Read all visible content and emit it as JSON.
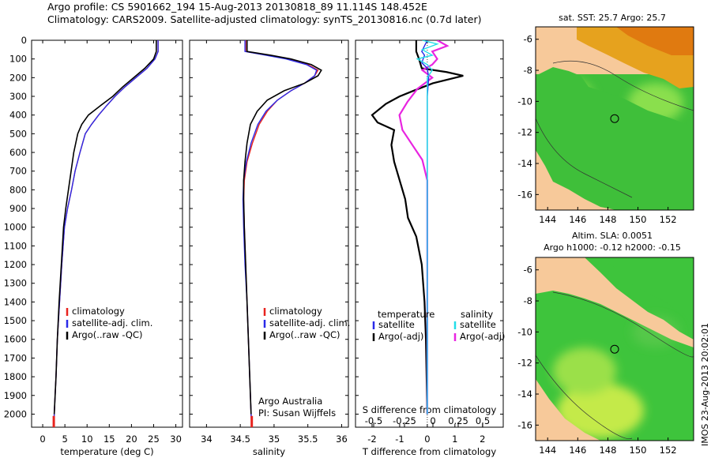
{
  "header": {
    "line1": "Argo profile: CS 5901662_194 15-Aug-2013 20130818_89 11.114S 148.452E",
    "line2": "Climatology: CARS2009. Satellite-adjusted climatology: synTS_20130816.nc (0.7d later)"
  },
  "depth_axis": {
    "ticks": [
      0,
      100,
      200,
      300,
      400,
      500,
      600,
      700,
      800,
      900,
      1000,
      1100,
      1200,
      1300,
      1400,
      1500,
      1600,
      1700,
      1800,
      1900,
      2000
    ],
    "range": [
      0,
      2070
    ]
  },
  "colors": {
    "climatology": "#e8231e",
    "satellite": "#2a2ae8",
    "argo": "#000000",
    "cyan": "#22dde8",
    "magenta": "#e824e0",
    "land": "#f7c99a"
  },
  "chart_data": [
    {
      "type": "line",
      "xlabel": "temperature (deg C)",
      "xticks": [
        0,
        5,
        10,
        15,
        20,
        25,
        30
      ],
      "xlim": [
        -2.5,
        31.5
      ],
      "legend": [
        "climatology",
        "satellite-adj. clim.",
        "Argo(..raw -QC)"
      ],
      "series": [
        {
          "name": "climatology",
          "points": [
            [
              26.0,
              0
            ],
            [
              26.0,
              60
            ],
            [
              25.3,
              100
            ],
            [
              23.5,
              150
            ],
            [
              21.0,
              200
            ],
            [
              18.5,
              250
            ],
            [
              16.3,
              300
            ],
            [
              14.4,
              350
            ],
            [
              12.6,
              400
            ],
            [
              11.0,
              450
            ],
            [
              9.6,
              500
            ],
            [
              8.4,
              600
            ],
            [
              7.3,
              700
            ],
            [
              6.5,
              800
            ],
            [
              5.6,
              900
            ],
            [
              4.9,
              1000
            ],
            [
              4.3,
              1200
            ],
            [
              3.8,
              1400
            ],
            [
              3.3,
              1600
            ],
            [
              3.0,
              1800
            ],
            [
              2.6,
              2000
            ],
            [
              2.5,
              2070
            ]
          ]
        },
        {
          "name": "satellite-adj. clim.",
          "points": [
            [
              26.0,
              0
            ],
            [
              26.0,
              60
            ],
            [
              25.3,
              100
            ],
            [
              23.5,
              150
            ],
            [
              21.0,
              200
            ],
            [
              18.5,
              250
            ],
            [
              16.3,
              300
            ],
            [
              14.4,
              350
            ],
            [
              12.6,
              400
            ],
            [
              11.0,
              450
            ],
            [
              9.6,
              500
            ],
            [
              8.4,
              600
            ],
            [
              7.3,
              700
            ],
            [
              6.5,
              800
            ],
            [
              5.6,
              900
            ],
            [
              4.9,
              1000
            ],
            [
              4.3,
              1200
            ],
            [
              3.8,
              1400
            ],
            [
              3.3,
              1600
            ],
            [
              3.0,
              1800
            ],
            [
              2.6,
              2000
            ],
            [
              2.5,
              2070
            ]
          ]
        },
        {
          "name": "Argo(..raw -QC)",
          "points": [
            [
              25.6,
              0
            ],
            [
              25.6,
              60
            ],
            [
              25.0,
              100
            ],
            [
              23.0,
              150
            ],
            [
              20.5,
              200
            ],
            [
              18.0,
              250
            ],
            [
              15.8,
              300
            ],
            [
              13.0,
              350
            ],
            [
              10.3,
              400
            ],
            [
              8.8,
              450
            ],
            [
              7.9,
              500
            ],
            [
              7.0,
              600
            ],
            [
              6.4,
              700
            ],
            [
              5.8,
              800
            ],
            [
              5.2,
              900
            ],
            [
              4.7,
              1000
            ],
            [
              4.2,
              1200
            ],
            [
              3.7,
              1400
            ],
            [
              3.3,
              1600
            ],
            [
              3.0,
              1800
            ],
            [
              2.6,
              2000
            ]
          ]
        }
      ]
    },
    {
      "type": "line",
      "xlabel": "salinity",
      "xticks": [
        34,
        34.5,
        35,
        35.5,
        36
      ],
      "xlim": [
        33.75,
        36.1
      ],
      "legend": [
        "climatology",
        "satellite-adj. clim.",
        "Argo(..raw -QC)"
      ],
      "annotation": [
        "Argo Australia",
        "PI: Susan Wijffels"
      ],
      "series": [
        {
          "name": "climatology",
          "points": [
            [
              34.58,
              0
            ],
            [
              34.58,
              60
            ],
            [
              34.9,
              80
            ],
            [
              35.2,
              100
            ],
            [
              35.5,
              130
            ],
            [
              35.65,
              160
            ],
            [
              35.6,
              190
            ],
            [
              35.45,
              230
            ],
            [
              35.25,
              270
            ],
            [
              35.05,
              320
            ],
            [
              34.9,
              380
            ],
            [
              34.78,
              450
            ],
            [
              34.68,
              550
            ],
            [
              34.6,
              650
            ],
            [
              34.56,
              750
            ],
            [
              34.55,
              850
            ],
            [
              34.56,
              1000
            ],
            [
              34.58,
              1200
            ],
            [
              34.6,
              1400
            ],
            [
              34.62,
              1600
            ],
            [
              34.64,
              1800
            ],
            [
              34.66,
              2000
            ],
            [
              34.67,
              2070
            ]
          ]
        },
        {
          "name": "satellite-adj. clim.",
          "points": [
            [
              34.57,
              0
            ],
            [
              34.57,
              60
            ],
            [
              34.88,
              80
            ],
            [
              35.18,
              100
            ],
            [
              35.48,
              130
            ],
            [
              35.63,
              160
            ],
            [
              35.6,
              190
            ],
            [
              35.45,
              230
            ],
            [
              35.25,
              270
            ],
            [
              35.05,
              320
            ],
            [
              34.88,
              380
            ],
            [
              34.76,
              450
            ],
            [
              34.66,
              550
            ],
            [
              34.59,
              650
            ],
            [
              34.55,
              750
            ],
            [
              34.54,
              850
            ],
            [
              34.55,
              1000
            ],
            [
              34.57,
              1200
            ],
            [
              34.6,
              1400
            ],
            [
              34.62,
              1600
            ],
            [
              34.64,
              1800
            ],
            [
              34.66,
              2000
            ],
            [
              34.67,
              2070
            ]
          ]
        },
        {
          "name": "Argo(..raw -QC)",
          "points": [
            [
              34.6,
              0
            ],
            [
              34.6,
              60
            ],
            [
              34.95,
              80
            ],
            [
              35.25,
              100
            ],
            [
              35.55,
              130
            ],
            [
              35.7,
              160
            ],
            [
              35.65,
              190
            ],
            [
              35.45,
              230
            ],
            [
              35.15,
              270
            ],
            [
              34.9,
              320
            ],
            [
              34.75,
              380
            ],
            [
              34.65,
              450
            ],
            [
              34.6,
              550
            ],
            [
              34.57,
              650
            ],
            [
              34.55,
              750
            ],
            [
              34.55,
              850
            ],
            [
              34.56,
              1000
            ],
            [
              34.58,
              1200
            ],
            [
              34.6,
              1400
            ],
            [
              34.62,
              1600
            ],
            [
              34.64,
              1800
            ],
            [
              34.66,
              2000
            ]
          ]
        }
      ]
    },
    {
      "type": "line",
      "xlabel": "T difference from climatology",
      "xticks": [
        -2,
        -1,
        0,
        1,
        2
      ],
      "xlim": [
        -2.6,
        2.75
      ],
      "s_axis_label": "S difference from climatology",
      "s_ticks": [
        "-0.5",
        "-0.25",
        "0",
        "0.25",
        "0.5"
      ],
      "legend_titles": [
        "temperature",
        "salinity"
      ],
      "legend": [
        "satellite",
        "Argo(-adj)",
        "satellite",
        "Argo(-adj)"
      ],
      "series": [
        {
          "name": "satellite",
          "quantity": "temperature",
          "points": [
            [
              0.0,
              0
            ],
            [
              -0.1,
              30
            ],
            [
              -0.2,
              60
            ],
            [
              -0.1,
              80
            ],
            [
              -0.2,
              120
            ],
            [
              0.0,
              150
            ],
            [
              0.05,
              200
            ],
            [
              0.0,
              300
            ],
            [
              0.0,
              400
            ],
            [
              0.0,
              600
            ],
            [
              0.0,
              800
            ],
            [
              0.0,
              1000
            ],
            [
              0.0,
              2000
            ]
          ]
        },
        {
          "name": "Argo(-adj)",
          "quantity": "temperature",
          "points": [
            [
              -0.4,
              0
            ],
            [
              -0.4,
              60
            ],
            [
              -0.3,
              100
            ],
            [
              -0.2,
              150
            ],
            [
              0.7,
              170
            ],
            [
              1.3,
              190
            ],
            [
              0.2,
              230
            ],
            [
              -0.5,
              270
            ],
            [
              -1.0,
              300
            ],
            [
              -1.5,
              340
            ],
            [
              -2.0,
              400
            ],
            [
              -1.8,
              440
            ],
            [
              -1.2,
              480
            ],
            [
              -1.3,
              560
            ],
            [
              -1.2,
              650
            ],
            [
              -1.0,
              750
            ],
            [
              -0.8,
              850
            ],
            [
              -0.7,
              950
            ],
            [
              -0.4,
              1050
            ],
            [
              -0.2,
              1200
            ],
            [
              -0.1,
              1400
            ],
            [
              -0.05,
              1600
            ],
            [
              0.0,
              2000
            ]
          ]
        },
        {
          "name": "satellite",
          "quantity": "salinity",
          "points": [
            [
              -0.05,
              0
            ],
            [
              0.1,
              20
            ],
            [
              -0.05,
              50
            ],
            [
              0.05,
              80
            ],
            [
              -0.1,
              100
            ],
            [
              0.0,
              130
            ],
            [
              0.05,
              160
            ],
            [
              0.0,
              200
            ],
            [
              0.0,
              400
            ],
            [
              0.0,
              700
            ],
            [
              0.0,
              1000
            ],
            [
              0.0,
              2000
            ]
          ]
        },
        {
          "name": "Argo(-adj)",
          "quantity": "salinity",
          "points": [
            [
              0.1,
              0
            ],
            [
              0.2,
              30
            ],
            [
              0.05,
              60
            ],
            [
              0.1,
              100
            ],
            [
              0.05,
              130
            ],
            [
              -0.05,
              160
            ],
            [
              0.05,
              200
            ],
            [
              -0.1,
              260
            ],
            [
              -0.2,
              330
            ],
            [
              -0.28,
              400
            ],
            [
              -0.25,
              480
            ],
            [
              -0.15,
              560
            ],
            [
              -0.05,
              640
            ],
            [
              0.0,
              750
            ],
            [
              0.0,
              1000
            ],
            [
              0.0,
              2000
            ]
          ]
        }
      ]
    },
    {
      "type": "heatmap",
      "title": "sat. SST: 25.7 Argo: 25.7",
      "xticks": [
        144,
        146,
        148,
        150,
        152
      ],
      "yticks": [
        -6,
        -8,
        -10,
        -12,
        -14,
        -16
      ],
      "xlim": [
        143.2,
        153.7
      ],
      "ylim": [
        -17,
        -5.2
      ],
      "marker": [
        148.45,
        -11.11
      ]
    },
    {
      "type": "heatmap",
      "title_lines": [
        "Altim. SLA: 0.0051",
        "Argo h1000: -0.12 h2000: -0.15"
      ],
      "xticks": [
        144,
        146,
        148,
        150,
        152
      ],
      "yticks": [
        -6,
        -8,
        -10,
        -12,
        -14,
        -16
      ],
      "xlim": [
        143.2,
        153.7
      ],
      "ylim": [
        -17,
        -5.2
      ],
      "marker": [
        148.45,
        -11.11
      ]
    }
  ],
  "footer_stamp": "IMOS 23-Aug-2013 20:02:01"
}
